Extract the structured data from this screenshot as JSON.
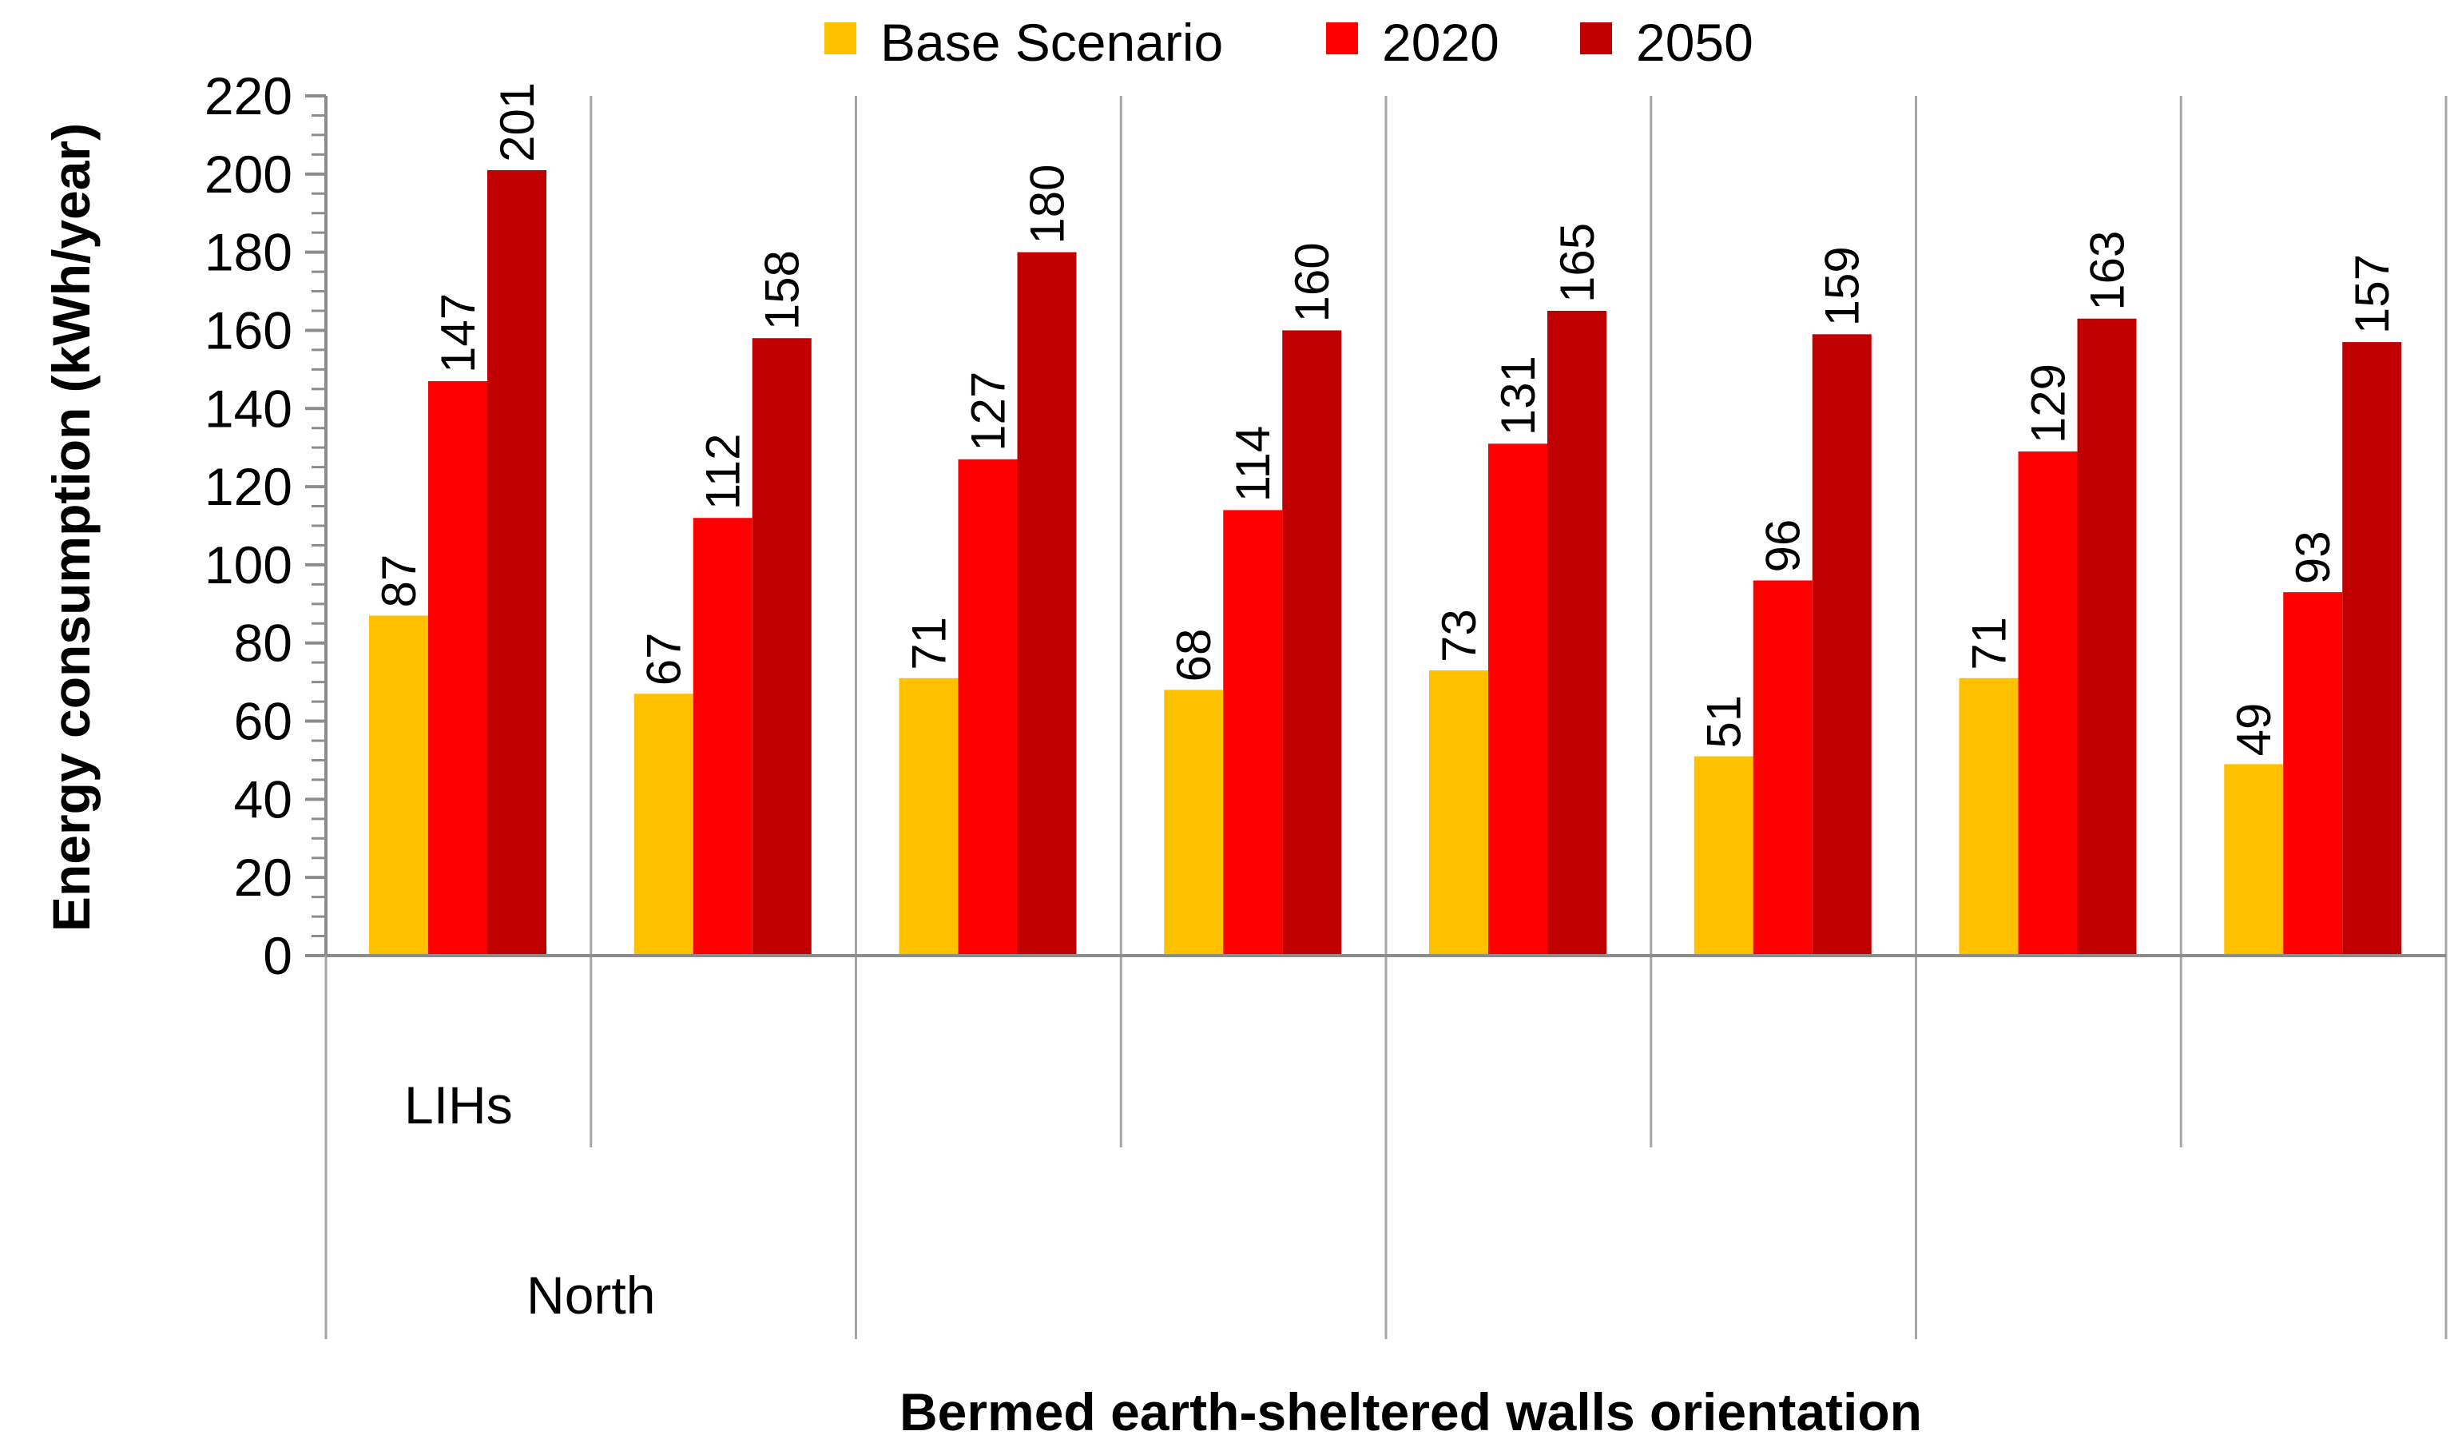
{
  "chart_data": {
    "type": "bar",
    "title": "",
    "ylabel": "Energy consumption (kWh/year)",
    "xlabel": "Bermed earth-sheltered walls orientation",
    "ylim": [
      0,
      220
    ],
    "y_major_step": 20,
    "y_minor_step": 5,
    "grid": false,
    "vertical_category_separators": true,
    "legend_position": "top-center",
    "colors": {
      "Base Scenario": "#FFC000",
      "2020": "#FF0000",
      "2050": "#C00000",
      "axis": "#8C8C8C",
      "separator": "#A6A6A6"
    },
    "categories": [
      "",
      "",
      "",
      "",
      "",
      "",
      "",
      ""
    ],
    "group_labels": {
      "level1": [
        {
          "label": "LIHs",
          "span": 1
        }
      ],
      "level2": [
        {
          "label": "North",
          "span": 2
        }
      ]
    },
    "series": [
      {
        "name": "Base Scenario",
        "values": [
          87,
          67,
          71,
          68,
          73,
          51,
          71,
          49
        ]
      },
      {
        "name": "2020",
        "values": [
          147,
          112,
          127,
          114,
          131,
          96,
          129,
          93
        ]
      },
      {
        "name": "2050",
        "values": [
          201,
          158,
          180,
          160,
          165,
          159,
          163,
          157
        ]
      }
    ]
  }
}
